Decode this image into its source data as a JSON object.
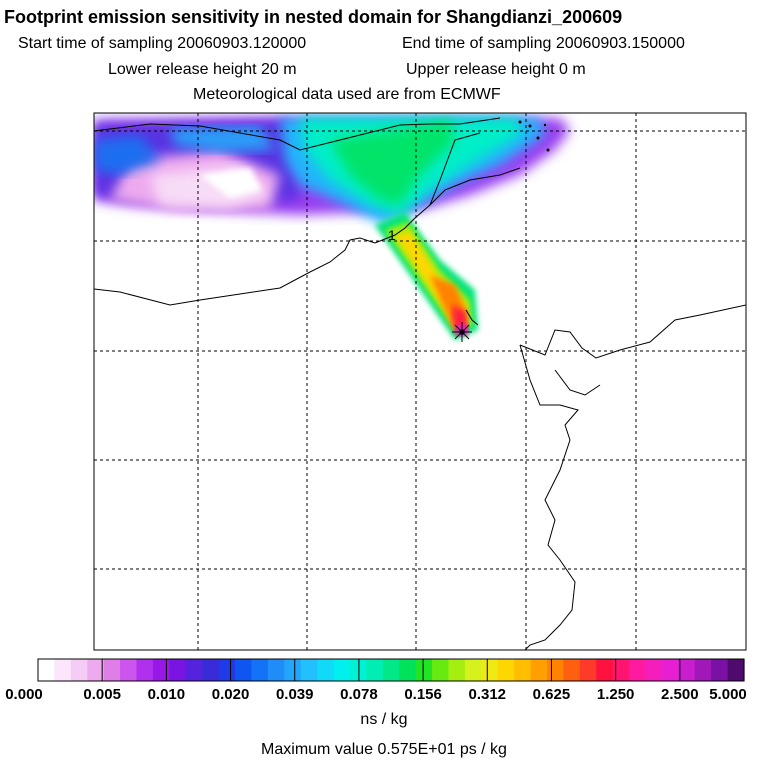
{
  "header": {
    "title": "Footprint emission sensitivity in nested domain for Shangdianzi_200609",
    "start_time": "Start time of sampling 20060903.120000",
    "end_time": "End time of sampling 20060903.150000",
    "lower_release": "Lower release height   20 m",
    "upper_release": "Upper release height    0 m",
    "met_data": "Meteorological data used are from ECMWF"
  },
  "map": {
    "contour_label": "1",
    "receptor_marker": "Shangdianzi release point"
  },
  "colorbar": {
    "tick_labels": [
      "0.000",
      "0.005",
      "0.010",
      "0.020",
      "0.039",
      "0.078",
      "0.156",
      "0.312",
      "0.625",
      "1.250",
      "2.500",
      "5.000"
    ],
    "colors": [
      "#ffffff",
      "#fbe6fb",
      "#f5ccf5",
      "#eeaaee",
      "#e07ee8",
      "#cc55ee",
      "#b030ee",
      "#9918e8",
      "#7a14e2",
      "#5522dd",
      "#3a2bd8",
      "#1f3ae6",
      "#0f55f2",
      "#1472f6",
      "#1f8cf8",
      "#22a6fa",
      "#22c0fc",
      "#10daf8",
      "#00f0ee",
      "#00f2d4",
      "#00eeb4",
      "#00e888",
      "#00e25a",
      "#22e426",
      "#66ea10",
      "#a6ee10",
      "#d6f21c",
      "#f0ea14",
      "#ffd700",
      "#ffbe00",
      "#ffa000",
      "#ff8200",
      "#ff6010",
      "#ff3a28",
      "#ff1240",
      "#ff1470",
      "#ff1aa0",
      "#f41ebd",
      "#e81ed3",
      "#c81ecd",
      "#a018b8",
      "#7a10a4",
      "#4e0a6c"
    ],
    "units": "ns / kg",
    "max_value": "Maximum value  0.575E+01 ps / kg"
  }
}
